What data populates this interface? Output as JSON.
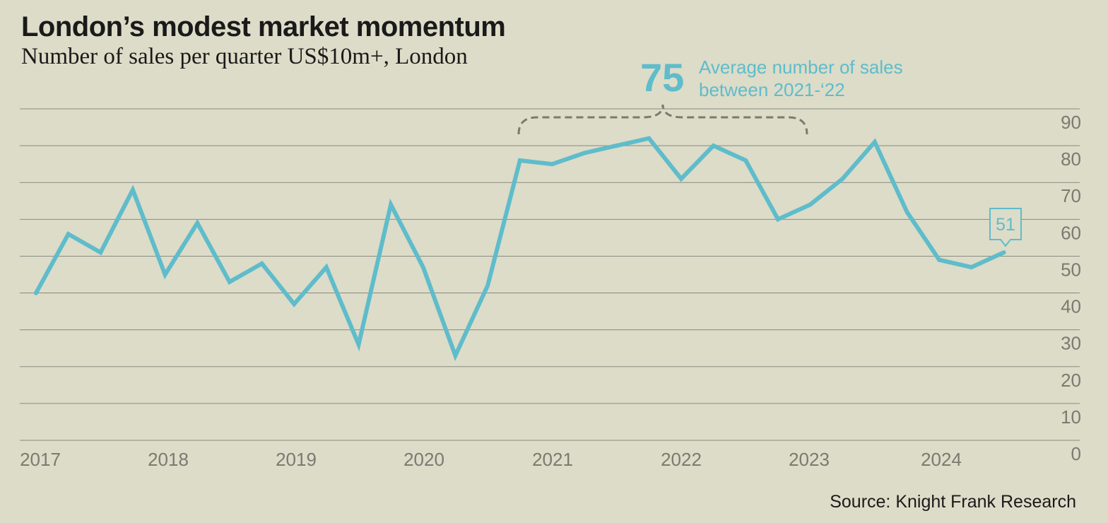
{
  "header": {
    "title": "London’s modest market momentum",
    "subtitle": "Number of sales per quarter US$10m+, London"
  },
  "footer": {
    "source": "Source: Knight Frank Research"
  },
  "annotation": {
    "big_value": "75",
    "line1": "Average number of sales",
    "line2": "between 2021-‘22"
  },
  "callout": {
    "label": "51"
  },
  "colors": {
    "background": "#dcdcc8",
    "series": "#5fbccb",
    "gridline": "#8a8a82",
    "bracket": "#7a7a72",
    "text": "#1a1a1a"
  },
  "chart_data": {
    "type": "line",
    "title": "London’s modest market momentum",
    "subtitle": "Number of sales per quarter US$10m+, London",
    "xlabel": "",
    "ylabel": "",
    "ylim": [
      0,
      90
    ],
    "yticks": [
      0,
      10,
      20,
      30,
      40,
      50,
      60,
      70,
      80,
      90
    ],
    "xticks": [
      "2017",
      "2018",
      "2019",
      "2020",
      "2021",
      "2022",
      "2023",
      "2024"
    ],
    "grid": true,
    "series": [
      {
        "name": "Number of sales per quarter US$10m+",
        "x": [
          "2017 Q1",
          "2017 Q2",
          "2017 Q3",
          "2017 Q4",
          "2018 Q1",
          "2018 Q2",
          "2018 Q3",
          "2018 Q4",
          "2019 Q1",
          "2019 Q2",
          "2019 Q3",
          "2019 Q4",
          "2020 Q1",
          "2020 Q2",
          "2020 Q3",
          "2020 Q4",
          "2021 Q1",
          "2021 Q2",
          "2021 Q3",
          "2021 Q4",
          "2022 Q1",
          "2022 Q2",
          "2022 Q3",
          "2022 Q4",
          "2023 Q1",
          "2023 Q2",
          "2023 Q3",
          "2023 Q4",
          "2024 Q1",
          "2024 Q2",
          "2024 Q3"
        ],
        "values": [
          40,
          56,
          51,
          68,
          45,
          59,
          43,
          48,
          37,
          47,
          26,
          64,
          47,
          23,
          42,
          76,
          75,
          78,
          80,
          82,
          71,
          80,
          76,
          60,
          64,
          71,
          81,
          62,
          49,
          47,
          51
        ]
      }
    ],
    "annotations": [
      {
        "text": "75",
        "note": "Average number of sales between 2021-‘22",
        "span": [
          "2021",
          "2022"
        ]
      },
      {
        "text": "51",
        "point": "2024 Q3"
      }
    ]
  }
}
